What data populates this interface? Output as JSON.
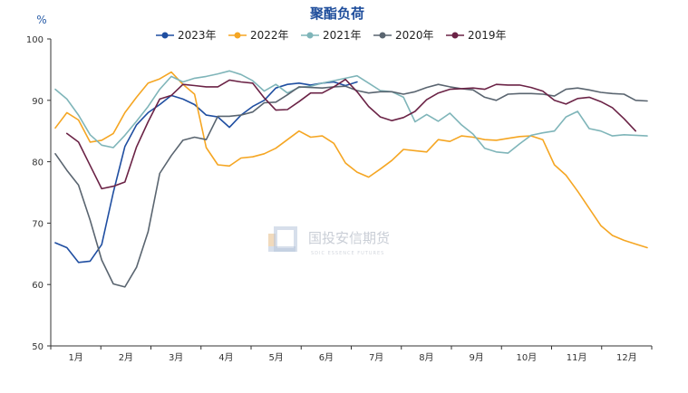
{
  "chart_data": {
    "type": "line",
    "title": "聚酯负荷",
    "unit": "%",
    "ylim": [
      50,
      100
    ],
    "yticks": [
      50,
      60,
      70,
      80,
      90,
      100
    ],
    "month_labels": [
      "1月",
      "2月",
      "3月",
      "4月",
      "5月",
      "6月",
      "7月",
      "8月",
      "9月",
      "10月",
      "11月",
      "12月"
    ],
    "x_unit": "week",
    "xlim": [
      1,
      52
    ],
    "legend_position": "top",
    "watermark": {
      "text": "国投安信期货",
      "sub": "SDIC ESSENCE FUTURES"
    },
    "series": [
      {
        "name": "2023年",
        "color": "#1f4ea1",
        "x": [
          1,
          2,
          3,
          4,
          5,
          6,
          7,
          8,
          9,
          10,
          11,
          12,
          13,
          14,
          15,
          16,
          17,
          18,
          19,
          20,
          21,
          22,
          23,
          24,
          25,
          26,
          27
        ],
        "y": [
          66.8,
          66.0,
          63.6,
          63.8,
          66.5,
          75.0,
          82.5,
          86.0,
          88.0,
          89.3,
          90.8,
          90.2,
          89.3,
          87.6,
          87.3,
          85.6,
          87.6,
          89.0,
          90.0,
          92.0,
          92.6,
          92.8,
          92.5,
          92.8,
          93.0,
          92.4,
          93.0
        ]
      },
      {
        "name": "2022年",
        "color": "#f5a623",
        "x": [
          1,
          2,
          3,
          4,
          5,
          6,
          7,
          8,
          9,
          10,
          11,
          12,
          13,
          14,
          15,
          16,
          17,
          18,
          19,
          20,
          21,
          22,
          23,
          24,
          25,
          26,
          27,
          28,
          29,
          30,
          31,
          32,
          33,
          34,
          35,
          36,
          37,
          38,
          39,
          40,
          41,
          42,
          43,
          44,
          45,
          46,
          47,
          48,
          49,
          50,
          51,
          52
        ],
        "y": [
          85.5,
          88.0,
          86.8,
          83.2,
          83.5,
          84.6,
          88.0,
          90.5,
          92.8,
          93.5,
          94.6,
          92.6,
          91.0,
          82.3,
          79.5,
          79.3,
          80.6,
          80.8,
          81.3,
          82.2,
          83.6,
          85.0,
          84.0,
          84.2,
          83.0,
          79.8,
          78.3,
          77.5,
          78.8,
          80.2,
          82.0,
          81.8,
          81.6,
          83.6,
          83.3,
          84.2,
          84.0,
          83.6,
          83.5,
          83.8,
          84.1,
          84.2,
          83.6,
          79.5,
          77.8,
          75.2,
          72.4,
          69.6,
          68.0,
          67.2,
          66.6,
          66.0
        ]
      },
      {
        "name": "2021年",
        "color": "#7fb5b9",
        "x": [
          1,
          2,
          3,
          4,
          5,
          6,
          7,
          8,
          9,
          10,
          11,
          12,
          13,
          14,
          15,
          16,
          17,
          18,
          19,
          20,
          21,
          22,
          23,
          24,
          25,
          26,
          27,
          28,
          29,
          30,
          31,
          32,
          33,
          34,
          35,
          36,
          37,
          38,
          39,
          40,
          41,
          42,
          43,
          44,
          45,
          46,
          47,
          48,
          49,
          50,
          51,
          52
        ],
        "y": [
          91.8,
          90.2,
          87.6,
          84.4,
          82.7,
          82.3,
          84.3,
          86.6,
          89.0,
          91.8,
          93.9,
          93.0,
          93.6,
          93.9,
          94.3,
          94.8,
          94.2,
          93.2,
          91.5,
          92.6,
          91.2,
          92.1,
          92.3,
          92.8,
          93.2,
          93.6,
          94.0,
          92.8,
          91.6,
          91.4,
          90.5,
          86.5,
          87.7,
          86.6,
          87.9,
          86.0,
          84.5,
          82.2,
          81.6,
          81.4,
          82.9,
          84.3,
          84.7,
          85.0,
          87.3,
          88.2,
          85.4,
          85.0,
          84.2,
          84.4,
          84.3,
          84.2
        ]
      },
      {
        "name": "2020年",
        "color": "#5a6570",
        "x": [
          1,
          2,
          3,
          4,
          5,
          6,
          7,
          8,
          9,
          10,
          11,
          12,
          13,
          14,
          15,
          16,
          17,
          18,
          19,
          20,
          21,
          22,
          23,
          24,
          25,
          26,
          27,
          28,
          29,
          30,
          31,
          32,
          33,
          34,
          35,
          36,
          37,
          38,
          39,
          40,
          41,
          42,
          43,
          44,
          45,
          46,
          47,
          48,
          49,
          50,
          51,
          52
        ],
        "y": [
          81.3,
          78.6,
          76.2,
          70.5,
          64.0,
          60.1,
          59.6,
          62.8,
          68.6,
          78.1,
          81.0,
          83.5,
          84.0,
          83.6,
          87.4,
          87.4,
          87.6,
          88.1,
          89.6,
          89.7,
          90.9,
          92.2,
          92.1,
          92.0,
          92.2,
          92.3,
          91.6,
          91.2,
          91.4,
          91.4,
          91.0,
          91.4,
          92.1,
          92.6,
          92.2,
          91.9,
          91.7,
          90.5,
          90.0,
          91.0,
          91.1,
          91.1,
          91.0,
          90.7,
          91.8,
          92.0,
          91.7,
          91.3,
          91.1,
          91.0,
          90.0,
          89.9
        ]
      },
      {
        "name": "2019年",
        "color": "#6b2346",
        "x": [
          2,
          3,
          4,
          5,
          6,
          7,
          8,
          9,
          10,
          11,
          12,
          13,
          14,
          15,
          16,
          17,
          18,
          19,
          20,
          21,
          22,
          23,
          24,
          25,
          26,
          27,
          28,
          29,
          30,
          31,
          32,
          33,
          34,
          35,
          36,
          37,
          38,
          39,
          40,
          41,
          42,
          43,
          44,
          45,
          46,
          47,
          48,
          49,
          50,
          51
        ],
        "y": [
          84.6,
          83.2,
          79.4,
          75.6,
          76.0,
          76.7,
          82.4,
          86.5,
          90.2,
          90.8,
          92.6,
          92.4,
          92.2,
          92.2,
          93.3,
          93.0,
          92.8,
          90.4,
          88.4,
          88.5,
          89.8,
          91.2,
          91.2,
          92.2,
          93.4,
          91.4,
          89.0,
          87.3,
          86.7,
          87.2,
          88.2,
          90.1,
          91.2,
          91.8,
          91.9,
          92.0,
          91.8,
          92.6,
          92.5,
          92.5,
          92.1,
          91.5,
          90.0,
          89.4,
          90.3,
          90.5,
          89.8,
          88.8,
          87.0,
          85.0
        ]
      }
    ]
  }
}
